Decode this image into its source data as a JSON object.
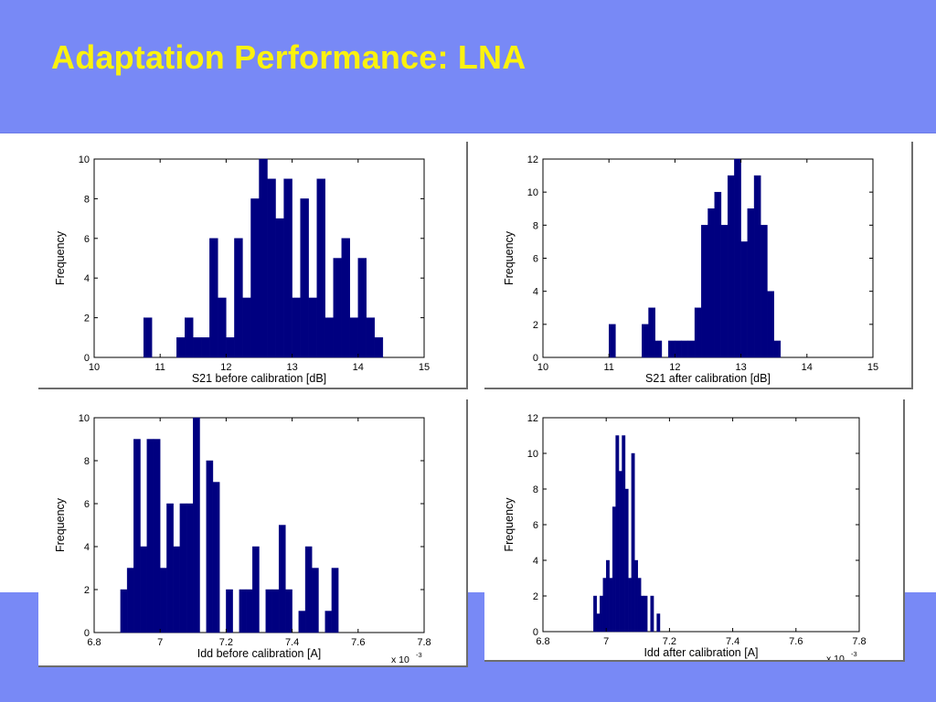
{
  "slide": {
    "title": "Adaptation Performance: LNA"
  },
  "colors": {
    "band": "#7889f6",
    "title": "#fbf20e",
    "bar": "#000080",
    "axis": "#000000"
  },
  "chart_data": [
    {
      "type": "bar",
      "title": "",
      "xlabel": "S21 before calibration [dB]",
      "ylabel": "Frequency",
      "xlim": [
        10,
        15
      ],
      "ylim": [
        0,
        10
      ],
      "xticks": [
        10,
        11,
        12,
        13,
        14,
        15
      ],
      "yticks": [
        0,
        2,
        4,
        6,
        8,
        10
      ],
      "bin_start": 10.0,
      "bin_width": 0.125,
      "values": [
        0,
        0,
        0,
        0,
        0,
        0,
        2,
        0,
        0,
        0,
        1,
        2,
        1,
        1,
        6,
        3,
        1,
        6,
        3,
        8,
        10,
        9,
        7,
        9,
        3,
        8,
        3,
        9,
        2,
        5,
        6,
        2,
        5,
        2,
        1,
        0,
        0,
        0,
        0,
        0,
        0
      ]
    },
    {
      "type": "bar",
      "title": "",
      "xlabel": "S21 after calibration [dB]",
      "ylabel": "Frequency",
      "xlim": [
        10,
        15
      ],
      "ylim": [
        0,
        12
      ],
      "xticks": [
        10,
        11,
        12,
        13,
        14,
        15
      ],
      "yticks": [
        0,
        2,
        4,
        6,
        8,
        10,
        12
      ],
      "bin_start": 10.0,
      "bin_width": 0.1,
      "values": [
        0,
        0,
        0,
        0,
        0,
        0,
        0,
        0,
        0,
        0,
        2,
        0,
        0,
        0,
        0,
        2,
        3,
        1,
        0,
        1,
        1,
        1,
        1,
        3,
        8,
        9,
        10,
        8,
        11,
        12,
        7,
        9,
        11,
        8,
        4,
        1,
        0,
        0,
        0,
        0,
        0,
        0,
        0,
        0,
        0,
        0,
        0,
        0,
        0,
        0
      ]
    },
    {
      "type": "bar",
      "title": "",
      "xlabel": "Idd before calibration [A]",
      "ylabel": "Frequency",
      "xlim": [
        6.8,
        7.8
      ],
      "ylim": [
        0,
        10
      ],
      "xticks": [
        6.8,
        7,
        7.2,
        7.4,
        7.6,
        7.8
      ],
      "x_multiplier": "x 10",
      "x_multiplier_exp": "-3",
      "yticks": [
        0,
        2,
        4,
        6,
        8,
        10
      ],
      "bin_start": 6.88,
      "bin_width": 0.02,
      "values": [
        2,
        3,
        9,
        4,
        9,
        9,
        3,
        6,
        4,
        6,
        6,
        10,
        0,
        8,
        7,
        0,
        2,
        0,
        2,
        2,
        4,
        0,
        2,
        2,
        5,
        2,
        0,
        1,
        4,
        3,
        0,
        1,
        3
      ]
    },
    {
      "type": "bar",
      "title": "",
      "xlabel": "Idd after calibration [A]",
      "ylabel": "Frequency",
      "xlim": [
        6.8,
        7.8
      ],
      "ylim": [
        0,
        12
      ],
      "xticks": [
        6.8,
        7,
        7.2,
        7.4,
        7.6,
        7.8
      ],
      "x_multiplier": "x 10",
      "x_multiplier_exp": "-3",
      "yticks": [
        0,
        2,
        4,
        6,
        8,
        10,
        12
      ],
      "bin_start": 6.96,
      "bin_width": 0.01,
      "values": [
        2,
        1,
        2,
        3,
        4,
        3,
        7,
        11,
        9,
        11,
        8,
        3,
        10,
        4,
        3,
        2,
        2,
        0,
        2,
        0,
        1
      ]
    }
  ]
}
